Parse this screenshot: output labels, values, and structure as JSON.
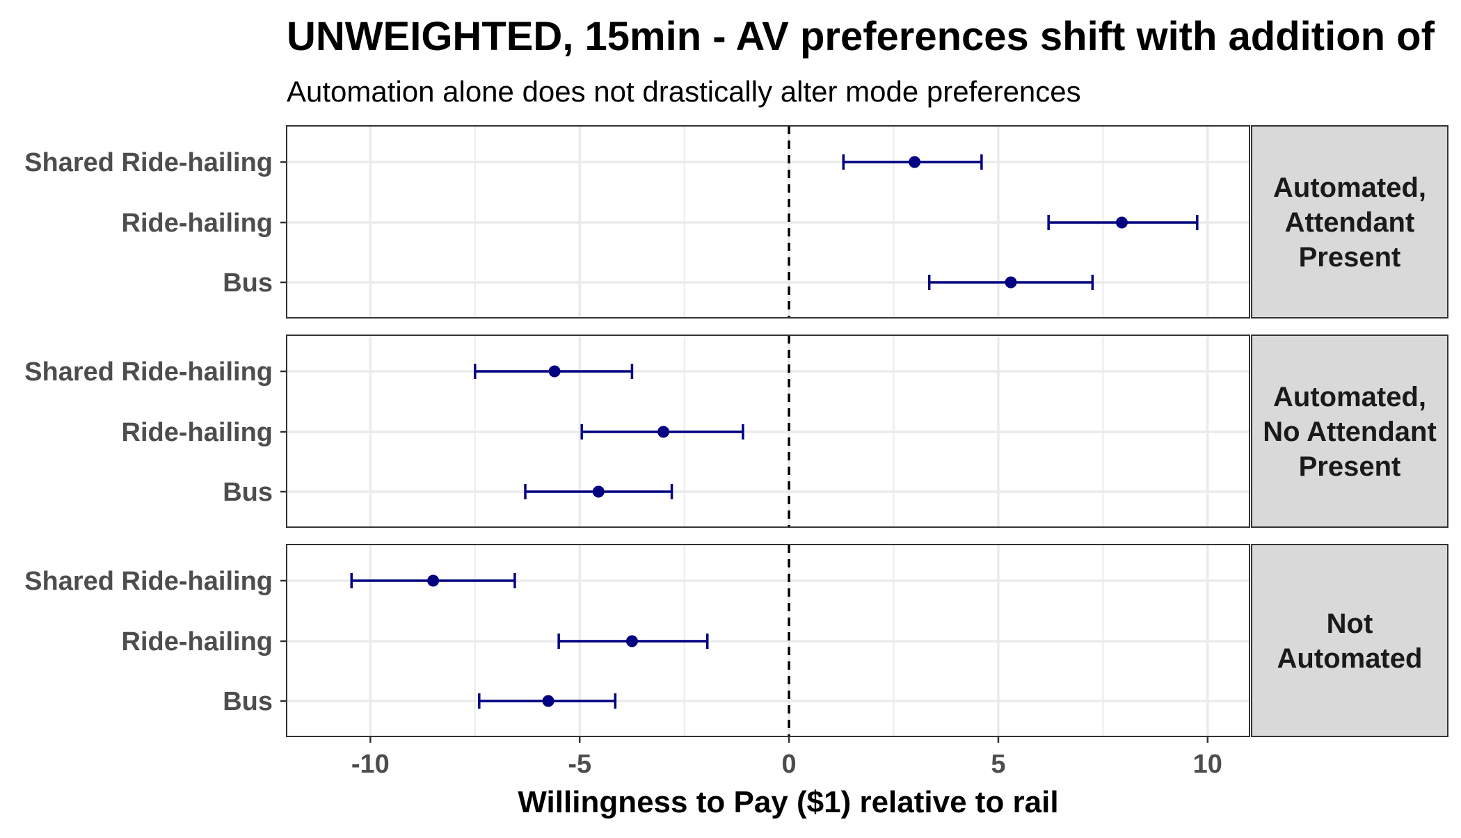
{
  "chart_data": {
    "type": "errorbar-facet",
    "title": "UNWEIGHTED, 15min - AV preferences shift with addition of",
    "subtitle": "Automation alone does not drastically alter mode preferences",
    "xlabel": "Willingness to Pay ($1) relative to rail",
    "xlim": [
      -12,
      11
    ],
    "xticks": [
      -10,
      -5,
      0,
      5,
      10
    ],
    "categories": [
      "Shared Ride-hailing",
      "Ride-hailing",
      "Bus"
    ],
    "reference_line": 0,
    "grid": true,
    "colors": {
      "point": "#000080",
      "errorbar": "#000080",
      "strip_bg": "#d9d9d9",
      "grid": "#ebebeb",
      "refline": "#000000"
    },
    "facets": [
      {
        "label_lines": [
          "Automated,",
          "Attendant",
          "Present"
        ],
        "points": [
          {
            "category": "Shared Ride-hailing",
            "value": 3.0,
            "low": 1.3,
            "high": 4.6
          },
          {
            "category": "Ride-hailing",
            "value": 7.95,
            "low": 6.2,
            "high": 9.75
          },
          {
            "category": "Bus",
            "value": 5.3,
            "low": 3.35,
            "high": 7.25
          }
        ]
      },
      {
        "label_lines": [
          "Automated,",
          "No Attendant",
          "Present"
        ],
        "points": [
          {
            "category": "Shared Ride-hailing",
            "value": -5.6,
            "low": -7.5,
            "high": -3.75
          },
          {
            "category": "Ride-hailing",
            "value": -3.0,
            "low": -4.95,
            "high": -1.1
          },
          {
            "category": "Bus",
            "value": -4.55,
            "low": -6.3,
            "high": -2.8
          }
        ]
      },
      {
        "label_lines": [
          "Not",
          "Automated"
        ],
        "points": [
          {
            "category": "Shared Ride-hailing",
            "value": -8.5,
            "low": -10.45,
            "high": -6.55
          },
          {
            "category": "Ride-hailing",
            "value": -3.75,
            "low": -5.5,
            "high": -1.95
          },
          {
            "category": "Bus",
            "value": -5.75,
            "low": -7.4,
            "high": -4.15
          }
        ]
      }
    ]
  }
}
